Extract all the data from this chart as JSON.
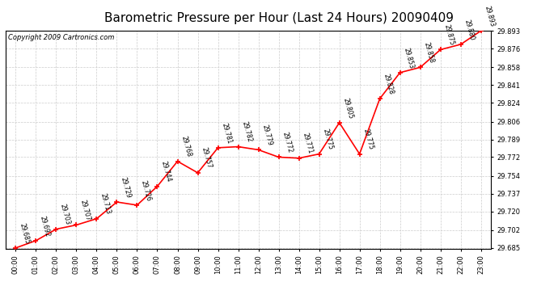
{
  "title": "Barometric Pressure per Hour (Last 24 Hours) 20090409",
  "copyright": "Copyright 2009 Cartronics.com",
  "hours": [
    "00:00",
    "01:00",
    "02:00",
    "03:00",
    "04:00",
    "05:00",
    "06:00",
    "07:00",
    "08:00",
    "09:00",
    "10:00",
    "11:00",
    "12:00",
    "13:00",
    "14:00",
    "15:00",
    "16:00",
    "17:00",
    "18:00",
    "19:00",
    "20:00",
    "21:00",
    "22:00",
    "23:00"
  ],
  "values": [
    29.685,
    29.692,
    29.703,
    29.707,
    29.713,
    29.729,
    29.726,
    29.744,
    29.768,
    29.757,
    29.781,
    29.782,
    29.779,
    29.772,
    29.771,
    29.775,
    29.805,
    29.775,
    29.828,
    29.853,
    29.858,
    29.875,
    29.88,
    29.893
  ],
  "line_color": "#ff0000",
  "marker_color": "#ff0000",
  "bg_color": "#ffffff",
  "plot_bg_color": "#ffffff",
  "grid_color": "#cccccc",
  "title_color": "#000000",
  "label_color": "#000000",
  "ylim_min": 29.685,
  "ylim_max": 29.893,
  "yticks": [
    29.685,
    29.702,
    29.72,
    29.737,
    29.754,
    29.772,
    29.789,
    29.806,
    29.824,
    29.841,
    29.858,
    29.876,
    29.893
  ],
  "title_fontsize": 11,
  "label_fontsize": 5.5,
  "tick_fontsize": 6,
  "copyright_fontsize": 6
}
